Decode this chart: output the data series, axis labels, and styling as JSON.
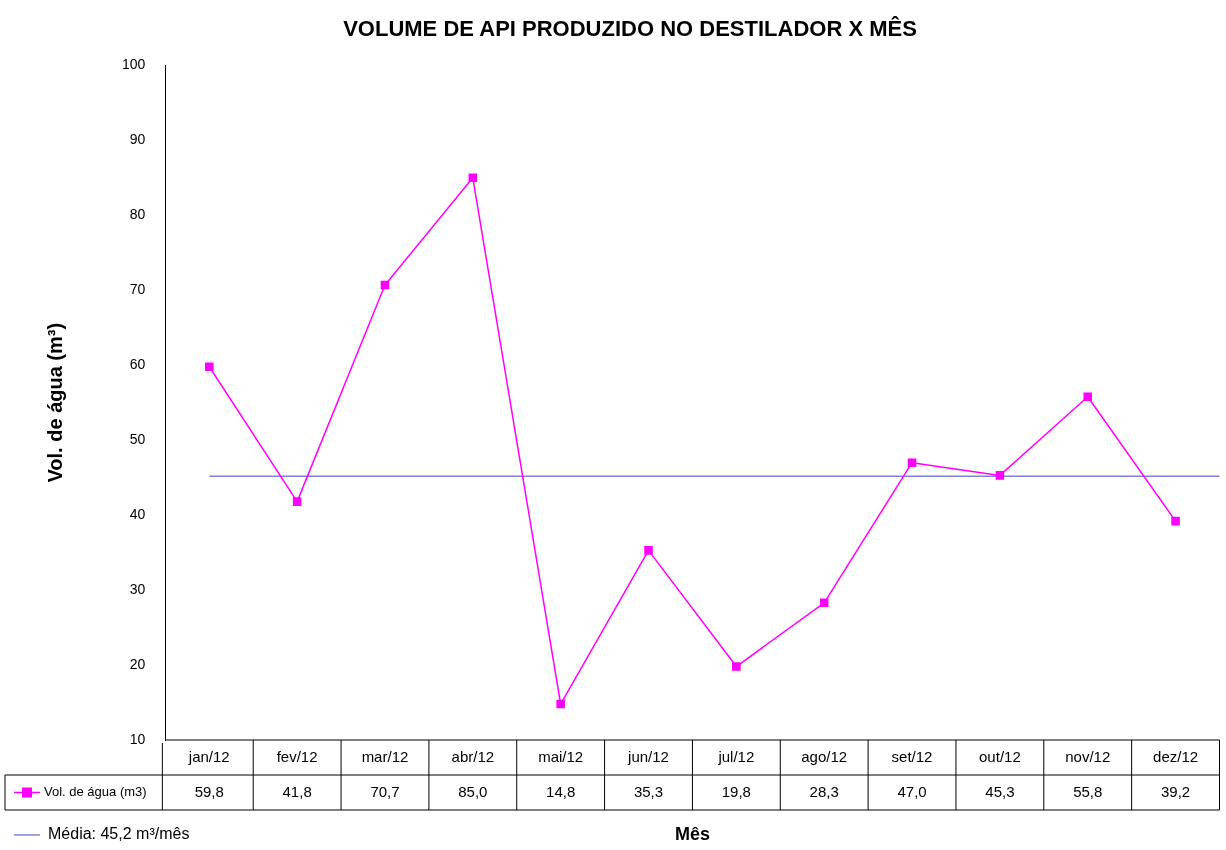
{
  "chart_data": {
    "type": "line",
    "title": "VOLUME DE API PRODUZIDO NO DESTILADOR X MÊS",
    "xlabel": "Mês",
    "ylabel": "Vol. de água (m³)",
    "categories": [
      "jan/12",
      "fev/12",
      "mar/12",
      "abr/12",
      "mai/12",
      "jun/12",
      "jul/12",
      "ago/12",
      "set/12",
      "out/12",
      "nov/12",
      "dez/12"
    ],
    "series": [
      {
        "name": "Vol. de água (m3)",
        "color": "#ff00ff",
        "values": [
          59.8,
          41.8,
          70.7,
          85.0,
          14.8,
          35.3,
          19.8,
          28.3,
          47.0,
          45.3,
          55.8,
          39.2
        ],
        "value_labels": [
          "59,8",
          "41,8",
          "70,7",
          "85,0",
          "14,8",
          "35,3",
          "19,8",
          "28,3",
          "47,0",
          "45,3",
          "55,8",
          "39,2"
        ]
      }
    ],
    "ref_lines": [
      {
        "axis": "y",
        "value": 45.2,
        "label": "Média: 45,2 m³/mês",
        "color": "#8080e0"
      }
    ],
    "ylim": [
      10,
      100
    ],
    "yticks": [
      10,
      20,
      30,
      40,
      50,
      60,
      70,
      80,
      90,
      100
    ],
    "grid": false,
    "legend": "bottom",
    "marker": "square",
    "line_style": "solid"
  }
}
